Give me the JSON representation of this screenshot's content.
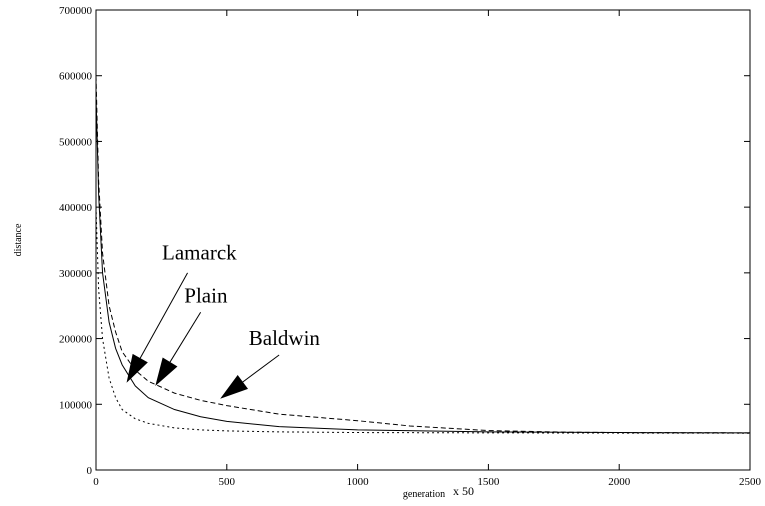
{
  "chart_data": {
    "type": "line",
    "title": "",
    "xlabel": "generation",
    "xlabel_suffix": "x 50",
    "ylabel": "distance",
    "xlim": [
      0,
      2500
    ],
    "ylim": [
      0,
      700000
    ],
    "xticks": [
      0,
      500,
      1000,
      1500,
      2000,
      2500
    ],
    "yticks": [
      0,
      100000,
      200000,
      300000,
      400000,
      500000,
      600000,
      700000
    ],
    "grid": false,
    "legend": "none",
    "series": [
      {
        "name": "Lamarck",
        "style": "dotted",
        "x": [
          0,
          10,
          25,
          50,
          75,
          100,
          150,
          200,
          300,
          400,
          500,
          700,
          1000,
          1500,
          2000,
          2500
        ],
        "y": [
          400000,
          275000,
          200000,
          140000,
          110000,
          92000,
          78000,
          71000,
          64000,
          61000,
          59500,
          58000,
          57000,
          56500,
          56200,
          56000
        ]
      },
      {
        "name": "Plain",
        "style": "solid",
        "x": [
          0,
          10,
          25,
          50,
          75,
          100,
          150,
          200,
          300,
          400,
          500,
          700,
          1000,
          1500,
          2000,
          2500
        ],
        "y": [
          570000,
          420000,
          300000,
          225000,
          185000,
          160000,
          128000,
          110000,
          92000,
          81000,
          74000,
          66000,
          61000,
          58000,
          57000,
          56500
        ]
      },
      {
        "name": "Baldwin",
        "style": "dashed",
        "x": [
          0,
          10,
          25,
          50,
          75,
          100,
          150,
          200,
          300,
          400,
          500,
          700,
          1000,
          1200,
          1500,
          1800,
          2000,
          2500
        ],
        "y": [
          600000,
          440000,
          330000,
          250000,
          210000,
          180000,
          152000,
          135000,
          117000,
          106000,
          98000,
          85000,
          75000,
          67000,
          60000,
          57500,
          57000,
          56500
        ]
      }
    ],
    "annotations": [
      {
        "text": "Lamarck",
        "label_at": [
          395,
          320000
        ],
        "arrow_from": [
          350,
          300000
        ],
        "arrow_to": [
          120,
          135000
        ]
      },
      {
        "text": "Plain",
        "label_at": [
          420,
          255000
        ],
        "arrow_from": [
          400,
          240000
        ],
        "arrow_to": [
          230,
          130000
        ]
      },
      {
        "text": "Baldwin",
        "label_at": [
          720,
          190000
        ],
        "arrow_from": [
          700,
          175000
        ],
        "arrow_to": [
          480,
          110000
        ]
      }
    ]
  }
}
